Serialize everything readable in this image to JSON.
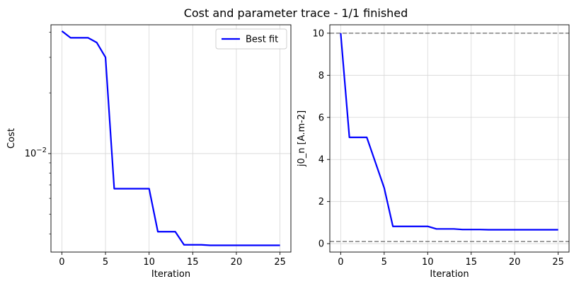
{
  "title": "Cost and parameter trace - 1/1 finished",
  "chart_data": [
    {
      "type": "line",
      "panel": "left",
      "xlabel": "Iteration",
      "ylabel": "Cost",
      "yscale": "log",
      "xlim": [
        -1.25,
        26.25
      ],
      "ylim": [
        0.00325,
        0.0435
      ],
      "x_ticks": [
        0,
        5,
        10,
        15,
        20,
        25
      ],
      "x_tick_labels": [
        "0",
        "5",
        "10",
        "15",
        "20",
        "25"
      ],
      "y_major_ticks": [
        0.01
      ],
      "y_major_tick_labels": [
        "10^-2"
      ],
      "y_minor_ticks": [
        0.004,
        0.005,
        0.006,
        0.007,
        0.008,
        0.009,
        0.02,
        0.03,
        0.04
      ],
      "grid": true,
      "legend": {
        "position": "upper right",
        "entries": [
          "Best fit"
        ]
      },
      "series": [
        {
          "name": "Best fit",
          "color": "#0000ff",
          "x": [
            0,
            1,
            2,
            3,
            4,
            5,
            6,
            7,
            8,
            9,
            10,
            11,
            12,
            13,
            14,
            15,
            16,
            17,
            18,
            19,
            20,
            21,
            22,
            23,
            24,
            25
          ],
          "y": [
            0.0405,
            0.0375,
            0.0375,
            0.0375,
            0.0355,
            0.03,
            0.0067,
            0.0067,
            0.0067,
            0.0067,
            0.0067,
            0.0041,
            0.0041,
            0.0041,
            0.00353,
            0.00353,
            0.00353,
            0.00351,
            0.00351,
            0.00351,
            0.00351,
            0.00351,
            0.00351,
            0.00351,
            0.00351,
            0.00351
          ]
        }
      ]
    },
    {
      "type": "line",
      "panel": "right",
      "xlabel": "Iteration",
      "ylabel": "j0_n [A.m-2]",
      "yscale": "linear",
      "xlim": [
        -1.25,
        26.25
      ],
      "ylim": [
        -0.4,
        10.4
      ],
      "x_ticks": [
        0,
        5,
        10,
        15,
        20,
        25
      ],
      "x_tick_labels": [
        "0",
        "5",
        "10",
        "15",
        "20",
        "25"
      ],
      "y_ticks": [
        0,
        2,
        4,
        6,
        8,
        10
      ],
      "y_tick_labels": [
        "0",
        "2",
        "4",
        "6",
        "8",
        "10"
      ],
      "grid": true,
      "bounds": [
        0.1,
        10
      ],
      "bounds_color": "#808080",
      "series": [
        {
          "color": "#0000ff",
          "x": [
            0,
            1,
            2,
            3,
            4,
            5,
            6,
            7,
            8,
            9,
            10,
            11,
            12,
            13,
            14,
            15,
            16,
            17,
            18,
            19,
            20,
            21,
            22,
            23,
            24,
            25
          ],
          "y": [
            10.0,
            5.05,
            5.05,
            5.05,
            3.85,
            2.65,
            0.82,
            0.82,
            0.82,
            0.82,
            0.82,
            0.7,
            0.7,
            0.7,
            0.67,
            0.67,
            0.67,
            0.66,
            0.66,
            0.66,
            0.66,
            0.66,
            0.66,
            0.66,
            0.66,
            0.66
          ]
        }
      ]
    }
  ]
}
